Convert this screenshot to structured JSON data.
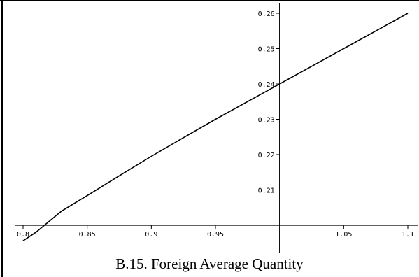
{
  "caption": "B.15. Foreign Average Quantity",
  "chart_data": {
    "type": "line",
    "title": "",
    "xlabel": "",
    "ylabel": "",
    "xlim": [
      0.8,
      1.1
    ],
    "ylim": [
      0.2,
      0.26
    ],
    "x_ticks": [
      0.8,
      0.85,
      0.9,
      0.95,
      1.05,
      1.1
    ],
    "x_tick_labels": [
      "0.8",
      "0.85",
      "0.9",
      "0.95",
      "1.05",
      "1.1"
    ],
    "y_ticks": [
      0.21,
      0.22,
      0.23,
      0.24,
      0.25,
      0.26
    ],
    "y_tick_labels": [
      "0.21",
      "0.22",
      "0.23",
      "0.24",
      "0.25",
      "0.26"
    ],
    "axes_cross": {
      "x": 1.0,
      "y": 0.2
    },
    "grid": false,
    "legend": "none",
    "line_color": "#000000",
    "series": [
      {
        "x": [
          0.8,
          0.81,
          0.82,
          0.83,
          0.85,
          0.875,
          0.9,
          0.925,
          0.95,
          0.975,
          1.0,
          1.025,
          1.05,
          1.075,
          1.1
        ],
        "y": [
          0.1956,
          0.198,
          0.201,
          0.204,
          0.2084,
          0.214,
          0.2195,
          0.2248,
          0.23,
          0.235,
          0.24,
          0.245,
          0.25,
          0.255,
          0.26
        ]
      }
    ]
  }
}
